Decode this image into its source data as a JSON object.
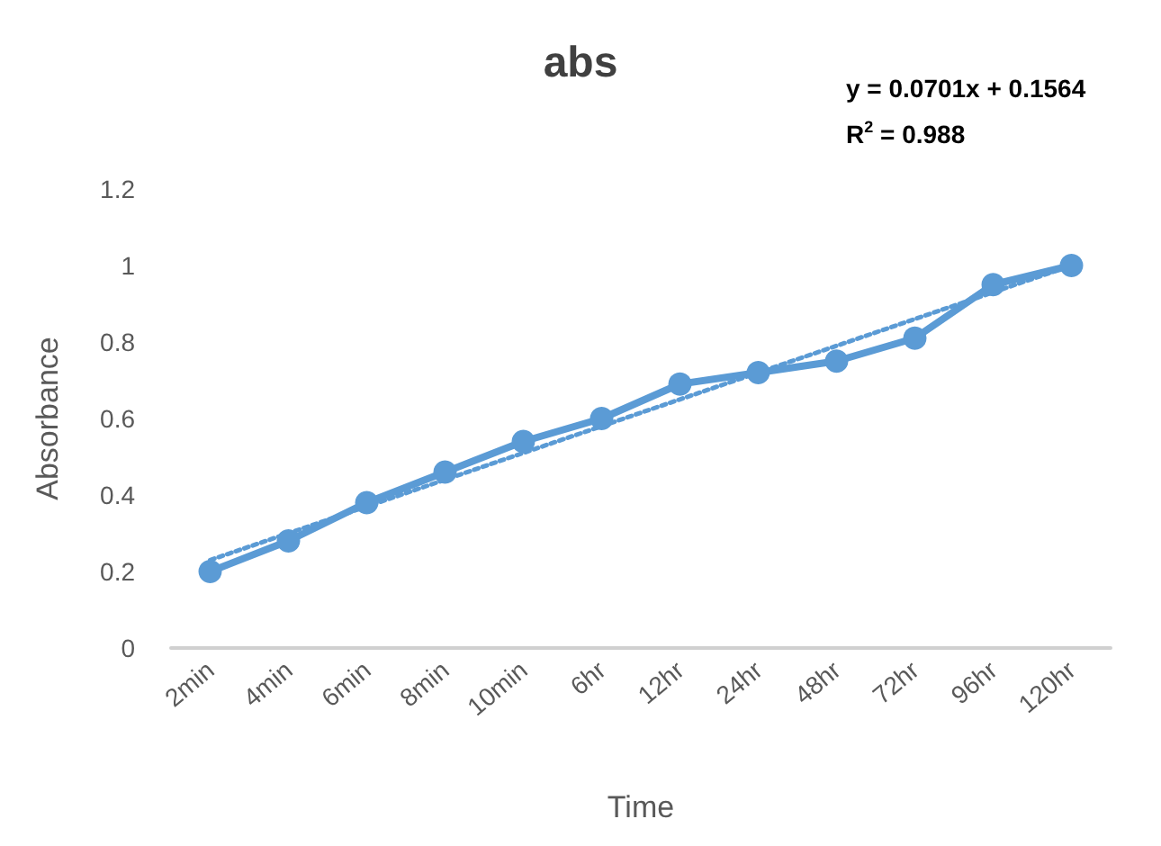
{
  "chart_data": {
    "type": "line",
    "title": "abs",
    "xlabel": "Time",
    "ylabel": "Absorbance",
    "annotations": [
      "y = 0.0701x + 0.1564",
      "R$^{2}$ = 0.988"
    ],
    "categories": [
      "2min",
      "4min",
      "6min",
      "8min",
      "10min",
      "6hr",
      "12hr",
      "24hr",
      "48hr",
      "72hr",
      "96hr",
      "120hr"
    ],
    "series": [
      {
        "color": "#5b9bd5",
        "values": [
          0.2,
          0.28,
          0.38,
          0.46,
          0.54,
          0.6,
          0.69,
          0.72,
          0.75,
          0.81,
          0.95,
          1.0
        ],
        "marker": "circle",
        "line_style": "solid"
      },
      {
        "color": "#5b9bd5",
        "x": [
          "2min",
          "120hr"
        ],
        "values": [
          0.23,
          1.0
        ],
        "marker": "none",
        "line_style": "dotted"
      }
    ],
    "ylim": [
      0,
      1.2
    ],
    "yticks": [
      0,
      0.2,
      0.4,
      0.6,
      0.8,
      1,
      1.2
    ],
    "grid": false
  }
}
